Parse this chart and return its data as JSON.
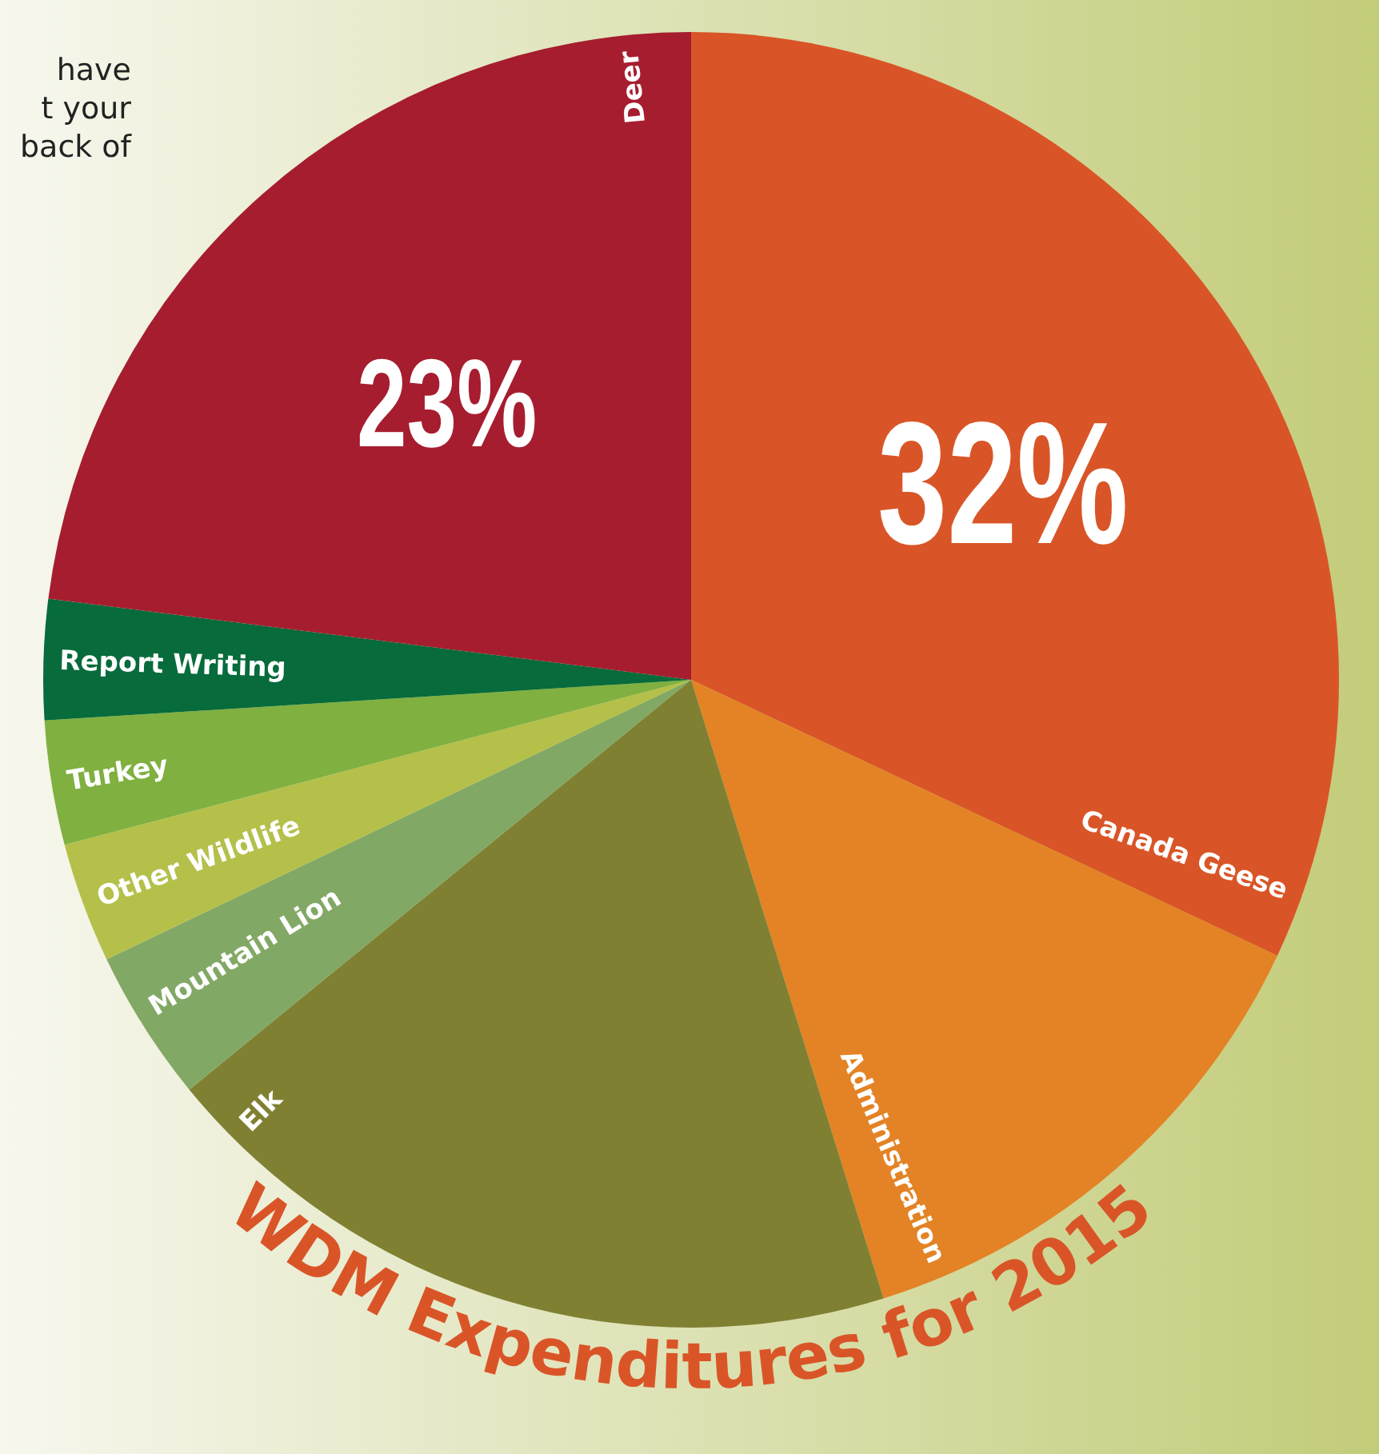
{
  "chart_data": {
    "type": "pie",
    "title": "WDM Expenditures for 2015",
    "categories": [
      "Canada Geese",
      "Administration",
      "Elk",
      "Mountain Lion",
      "Other Wildlife",
      "Turkey",
      "Report Writing",
      "Deer"
    ],
    "values": [
      32,
      13.2,
      18.9,
      3.8,
      3.0,
      3.1,
      3.0,
      23
    ],
    "colors": [
      "#d95527",
      "#e38325",
      "#808033",
      "#82a865",
      "#b4c04a",
      "#7fb040",
      "#076b3b",
      "#a61d2f"
    ],
    "value_labels": [
      "32%",
      null,
      null,
      null,
      null,
      null,
      null,
      "23%"
    ],
    "annotations": [
      "have",
      "t your",
      "back of"
    ]
  }
}
